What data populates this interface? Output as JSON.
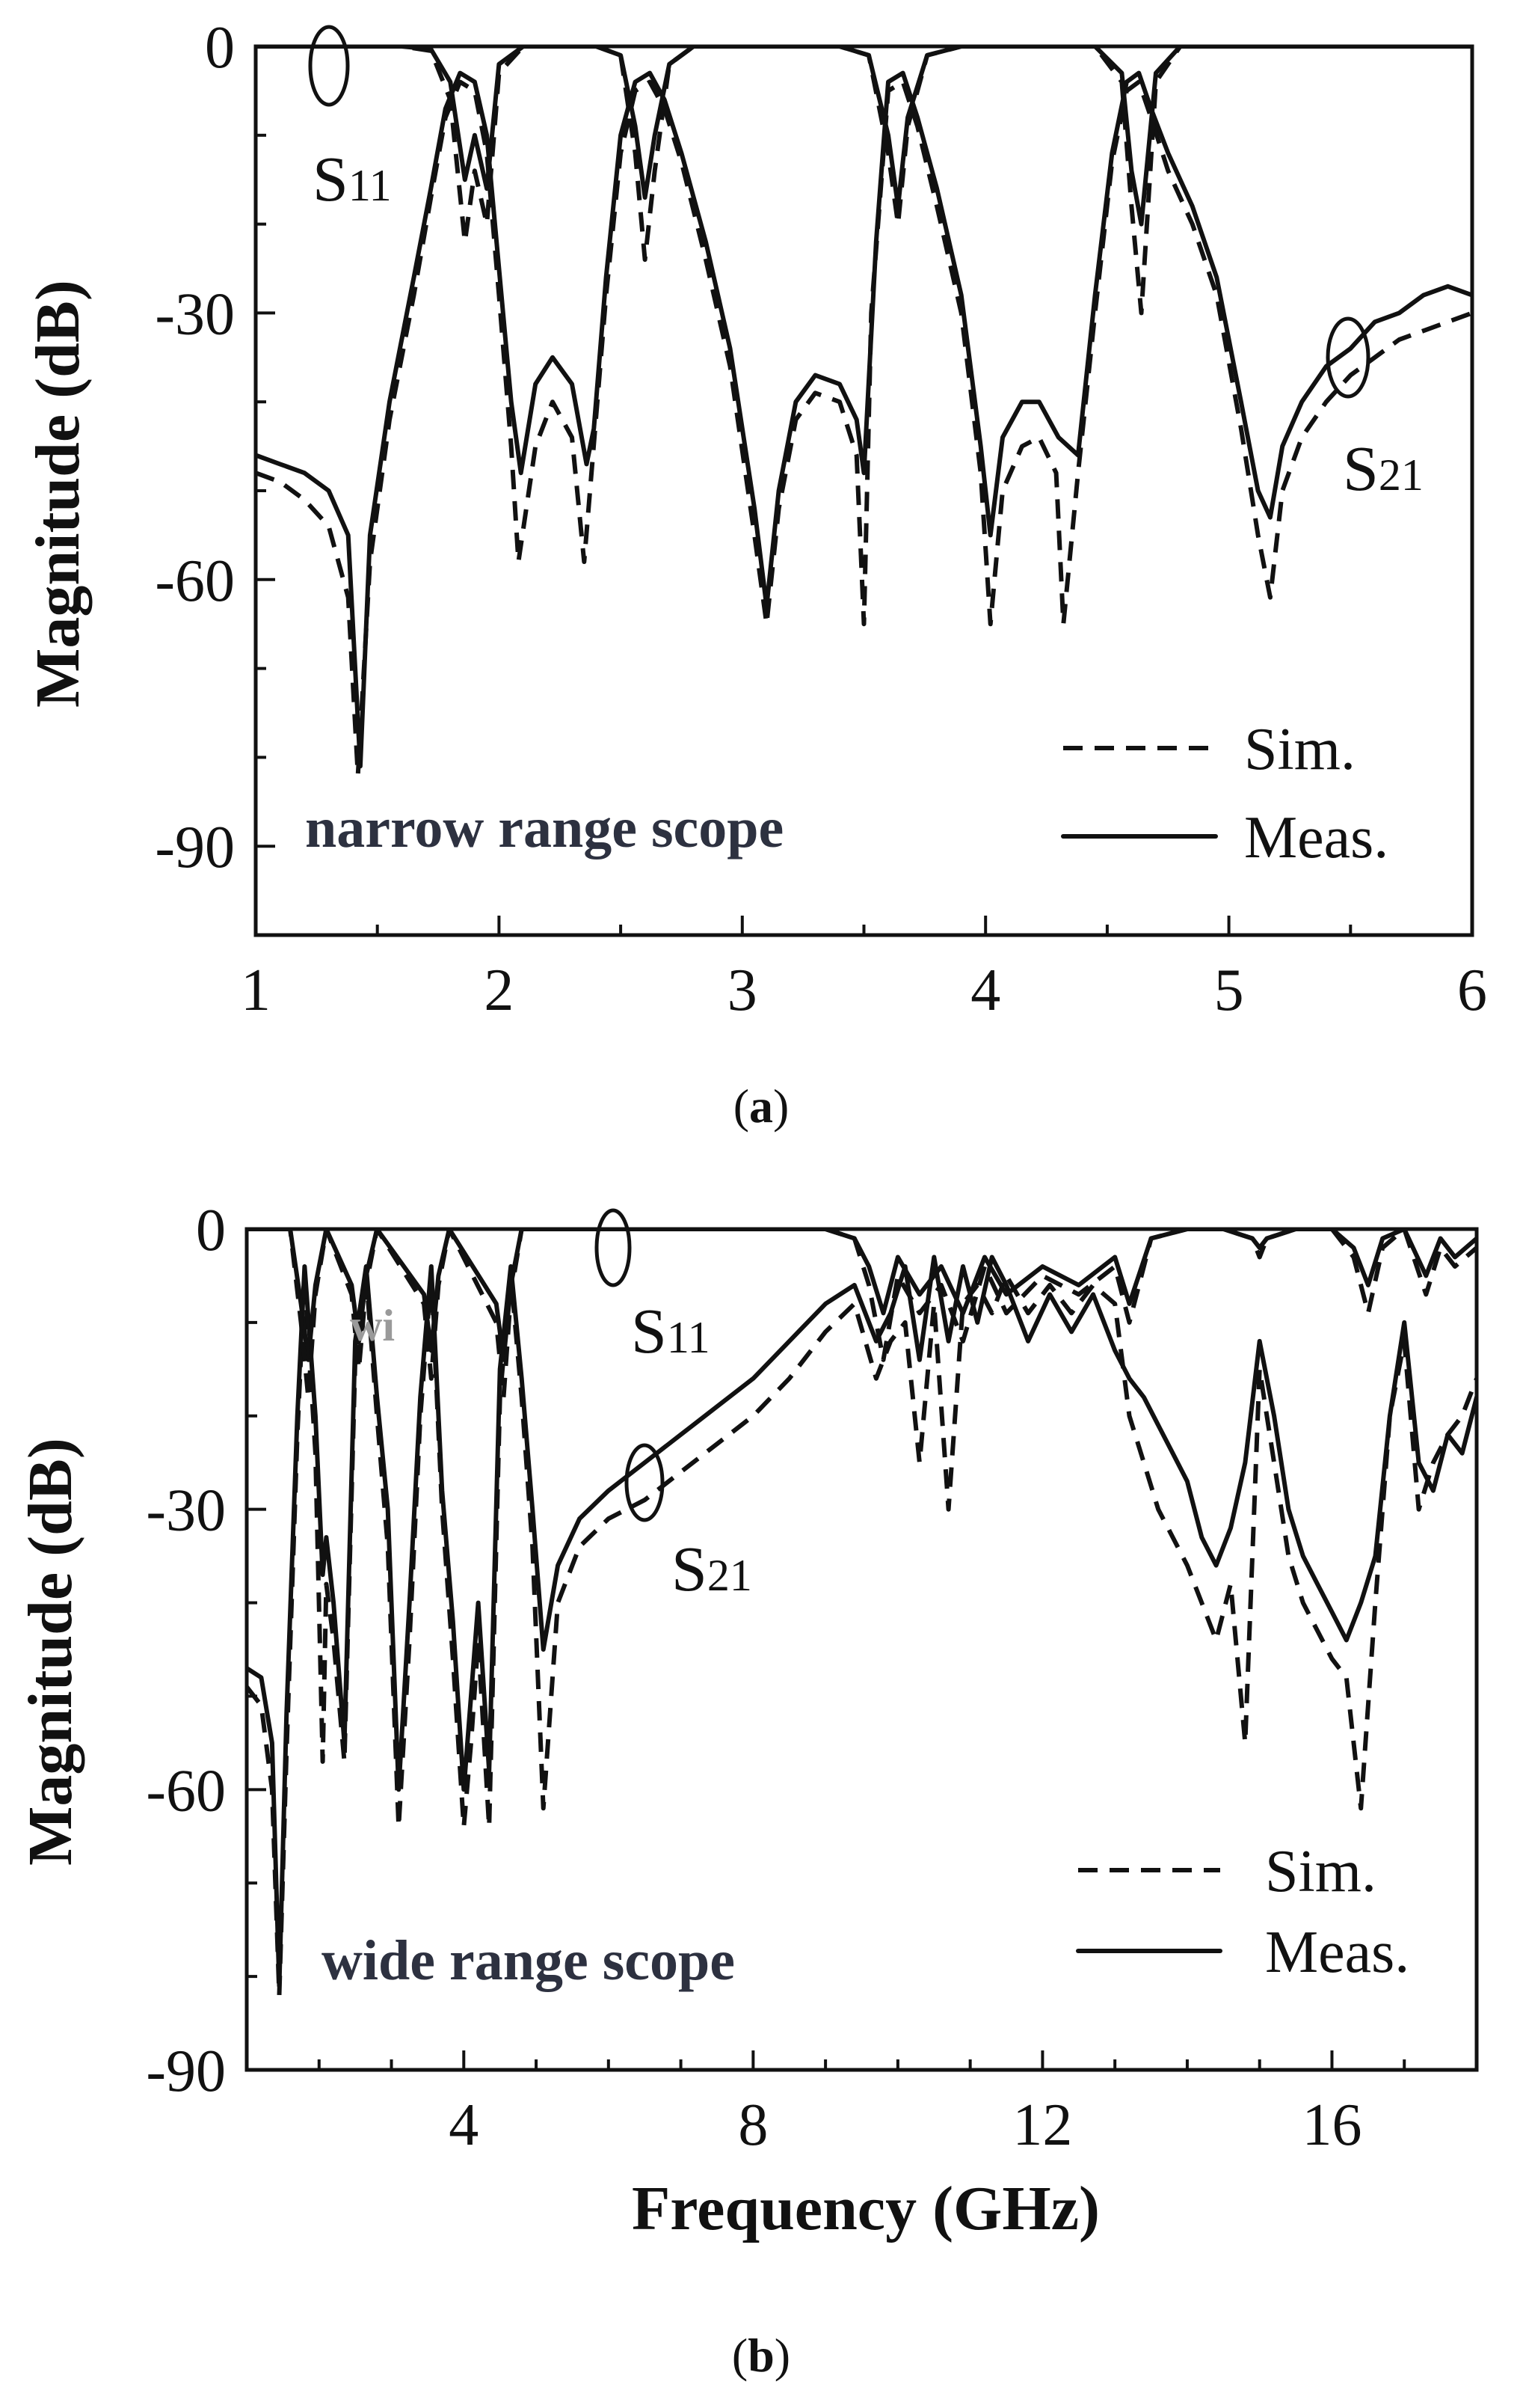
{
  "chart_data": [
    {
      "panel": "a",
      "type": "line",
      "panel_label": "a",
      "ylabel": "Magnitude (dB)",
      "xlabel": "",
      "xlim": [
        1,
        6
      ],
      "ylim": [
        -100,
        0
      ],
      "xticks": [
        "1",
        "2",
        "3",
        "4",
        "5",
        "6"
      ],
      "yticks": [
        "0",
        "-30",
        "-60",
        "-90"
      ],
      "annotation": "narrow range scope",
      "curve_labels": {
        "s11": "S",
        "s11_sub": "11",
        "s21": "S",
        "s21_sub": "21"
      },
      "legend": {
        "sim": "Sim.",
        "meas": "Meas."
      },
      "passbands": [
        [
          1.78,
          1.96
        ],
        [
          2.52,
          2.68
        ],
        [
          3.56,
          3.72
        ],
        [
          4.56,
          4.7
        ]
      ],
      "series": [
        {
          "name": "S21 Meas.",
          "style": "solid",
          "x": [
            1.0,
            1.1,
            1.2,
            1.3,
            1.38,
            1.43,
            1.47,
            1.55,
            1.65,
            1.72,
            1.78,
            1.84,
            1.9,
            1.95,
            2.0,
            2.05,
            2.09,
            2.15,
            2.22,
            2.3,
            2.36,
            2.39,
            2.44,
            2.5,
            2.56,
            2.62,
            2.68,
            2.75,
            2.85,
            2.95,
            3.05,
            3.1,
            3.15,
            3.22,
            3.3,
            3.4,
            3.47,
            3.5,
            3.55,
            3.6,
            3.66,
            3.72,
            3.8,
            3.9,
            3.98,
            4.02,
            4.07,
            4.15,
            4.22,
            4.3,
            4.38,
            4.45,
            4.52,
            4.58,
            4.63,
            4.68,
            4.75,
            4.85,
            4.95,
            5.05,
            5.12,
            5.17,
            5.22,
            5.3,
            5.4,
            5.5,
            5.6,
            5.7,
            5.8,
            5.9,
            6.0
          ],
          "values": [
            -46,
            -47,
            -48,
            -50,
            -55,
            -81,
            -55,
            -40,
            -26,
            -16,
            -7,
            -3,
            -4,
            -10,
            -25,
            -40,
            -48,
            -38,
            -35,
            -38,
            -47,
            -43,
            -26,
            -10,
            -4,
            -3,
            -6,
            -12,
            -22,
            -34,
            -52,
            -63,
            -50,
            -40,
            -37,
            -38,
            -42,
            -48,
            -22,
            -4,
            -3,
            -8,
            -16,
            -28,
            -45,
            -55,
            -44,
            -40,
            -40,
            -44,
            -46,
            -28,
            -12,
            -4,
            -3,
            -7,
            -12,
            -18,
            -26,
            -40,
            -50,
            -53,
            -45,
            -40,
            -36,
            -34,
            -31,
            -30,
            -28,
            -27,
            -28
          ]
        },
        {
          "name": "S21 Sim.",
          "style": "dashed",
          "x": [
            1.0,
            1.1,
            1.2,
            1.3,
            1.38,
            1.42,
            1.47,
            1.55,
            1.65,
            1.72,
            1.78,
            1.84,
            1.9,
            1.95,
            2.0,
            2.05,
            2.08,
            2.15,
            2.22,
            2.3,
            2.35,
            2.38,
            2.44,
            2.5,
            2.56,
            2.62,
            2.68,
            2.75,
            2.85,
            2.95,
            3.05,
            3.1,
            3.15,
            3.22,
            3.3,
            3.4,
            3.47,
            3.5,
            3.53,
            3.6,
            3.66,
            3.72,
            3.8,
            3.9,
            3.98,
            4.02,
            4.07,
            4.15,
            4.22,
            4.29,
            4.32,
            4.38,
            4.45,
            4.52,
            4.58,
            4.63,
            4.68,
            4.75,
            4.85,
            4.95,
            5.05,
            5.12,
            5.17,
            5.22,
            5.3,
            5.4,
            5.5,
            5.6,
            5.7,
            5.8,
            5.9,
            6.0
          ],
          "values": [
            -48,
            -49,
            -51,
            -54,
            -62,
            -82,
            -58,
            -42,
            -28,
            -17,
            -8,
            -4,
            -5,
            -12,
            -28,
            -45,
            -58,
            -45,
            -40,
            -44,
            -58,
            -48,
            -28,
            -12,
            -5,
            -4,
            -7,
            -13,
            -24,
            -36,
            -55,
            -65,
            -52,
            -42,
            -39,
            -40,
            -46,
            -65,
            -30,
            -5,
            -4,
            -9,
            -18,
            -30,
            -48,
            -65,
            -50,
            -45,
            -44,
            -48,
            -65,
            -48,
            -30,
            -13,
            -5,
            -4,
            -8,
            -14,
            -20,
            -28,
            -43,
            -55,
            -62,
            -50,
            -44,
            -40,
            -37,
            -35,
            -33,
            -32,
            -31,
            -30
          ]
        },
        {
          "name": "S11 Meas.",
          "style": "solid",
          "x": [
            1.0,
            1.6,
            1.72,
            1.8,
            1.86,
            1.9,
            1.95,
            2.0,
            2.1,
            2.4,
            2.5,
            2.56,
            2.6,
            2.64,
            2.7,
            2.8,
            3.4,
            3.52,
            3.6,
            3.64,
            3.68,
            3.76,
            3.9,
            4.45,
            4.56,
            4.6,
            4.64,
            4.7,
            4.8,
            5.0,
            6.0
          ],
          "values": [
            0,
            0,
            -0.3,
            -4,
            -15,
            -10,
            -16,
            -2,
            0,
            0,
            -1,
            -9,
            -17,
            -10,
            -2,
            0,
            0,
            -1,
            -10,
            -18,
            -8,
            -1,
            0,
            0,
            -3,
            -14,
            -20,
            -3,
            0,
            0,
            0
          ]
        },
        {
          "name": "S11 Sim.",
          "style": "dashed",
          "x": [
            1.0,
            1.6,
            1.72,
            1.8,
            1.86,
            1.9,
            1.95,
            2.0,
            2.1,
            2.4,
            2.5,
            2.56,
            2.6,
            2.64,
            2.7,
            2.8,
            3.4,
            3.52,
            3.6,
            3.64,
            3.68,
            3.76,
            3.9,
            4.45,
            4.56,
            4.6,
            4.64,
            4.7,
            4.8,
            5.0,
            6.0
          ],
          "values": [
            0,
            0,
            -0.5,
            -6,
            -22,
            -14,
            -20,
            -3,
            0,
            0,
            -1,
            -12,
            -24,
            -14,
            -2,
            0,
            0,
            -1,
            -12,
            -20,
            -9,
            -1,
            0,
            0,
            -4,
            -18,
            -30,
            -4,
            0,
            0,
            0
          ]
        }
      ]
    },
    {
      "panel": "b",
      "type": "line",
      "panel_label": "b",
      "ylabel": "Magnitude (dB)",
      "xlabel": "Frequency (GHz)",
      "xlim": [
        1,
        18
      ],
      "ylim": [
        -90,
        0
      ],
      "xticks": [
        "4",
        "8",
        "12",
        "16"
      ],
      "yticks": [
        "0",
        "-30",
        "-60",
        "-90"
      ],
      "annotation": "wide range scope",
      "faint_text": "wi",
      "curve_labels": {
        "s11": "S",
        "s11_sub": "11",
        "s21": "S",
        "s21_sub": "21"
      },
      "legend": {
        "sim": "Sim.",
        "meas": "Meas."
      },
      "passbands": [
        [
          1.75,
          2.05
        ],
        [
          2.5,
          2.8
        ],
        [
          3.5,
          3.8
        ],
        [
          4.5,
          4.8
        ]
      ],
      "series": [
        {
          "name": "S21 Meas.",
          "style": "solid",
          "x": [
            1.0,
            1.2,
            1.35,
            1.45,
            1.55,
            1.7,
            1.8,
            1.95,
            2.05,
            2.1,
            2.2,
            2.35,
            2.5,
            2.65,
            2.8,
            2.95,
            3.1,
            3.25,
            3.4,
            3.55,
            3.7,
            3.85,
            4.0,
            4.1,
            4.2,
            4.35,
            4.5,
            4.65,
            4.8,
            4.95,
            5.1,
            5.3,
            5.6,
            6.0,
            6.5,
            7.0,
            7.5,
            8.0,
            8.5,
            9.0,
            9.4,
            9.7,
            9.9,
            10.1,
            10.3,
            10.5,
            10.7,
            10.9,
            11.1,
            11.3,
            11.5,
            11.8,
            12.1,
            12.4,
            12.7,
            13.0,
            13.2,
            13.4,
            13.6,
            13.8,
            14.0,
            14.2,
            14.4,
            14.6,
            14.8,
            15.0,
            15.2,
            15.4,
            15.6,
            15.8,
            16.0,
            16.2,
            16.4,
            16.6,
            16.8,
            17.0,
            17.2,
            17.4,
            17.6,
            17.8,
            18.0
          ],
          "values": [
            -47,
            -48,
            -55,
            -81,
            -52,
            -20,
            -4,
            -20,
            -37,
            -33,
            -40,
            -55,
            -12,
            -4,
            -18,
            -30,
            -60,
            -40,
            -18,
            -4,
            -28,
            -42,
            -60,
            -50,
            -40,
            -58,
            -15,
            -4,
            -16,
            -30,
            -45,
            -36,
            -31,
            -28,
            -25,
            -22,
            -19,
            -16,
            -12,
            -8,
            -6,
            -12,
            -9,
            -4,
            -14,
            -3,
            -12,
            -4,
            -10,
            -3,
            -6,
            -12,
            -7,
            -11,
            -7,
            -13,
            -16,
            -18,
            -21,
            -24,
            -27,
            -33,
            -36,
            -32,
            -25,
            -12,
            -20,
            -30,
            -35,
            -38,
            -41,
            -44,
            -40,
            -35,
            -20,
            -10,
            -25,
            -28,
            -22,
            -24,
            -18
          ]
        },
        {
          "name": "S21 Sim.",
          "style": "dashed",
          "x": [
            1.0,
            1.2,
            1.35,
            1.45,
            1.55,
            1.7,
            1.8,
            1.95,
            2.05,
            2.1,
            2.2,
            2.35,
            2.5,
            2.65,
            2.8,
            2.95,
            3.1,
            3.25,
            3.4,
            3.55,
            3.7,
            3.85,
            4.0,
            4.1,
            4.2,
            4.35,
            4.5,
            4.65,
            4.8,
            4.95,
            5.1,
            5.3,
            5.6,
            6.0,
            6.5,
            7.0,
            7.5,
            8.0,
            8.5,
            9.0,
            9.4,
            9.7,
            9.9,
            10.1,
            10.3,
            10.5,
            10.7,
            10.9,
            11.1,
            11.3,
            11.5,
            11.8,
            12.1,
            12.4,
            12.7,
            13.0,
            13.2,
            13.4,
            13.6,
            13.8,
            14.0,
            14.2,
            14.4,
            14.6,
            14.8,
            15.0,
            15.2,
            15.4,
            15.6,
            15.8,
            16.0,
            16.2,
            16.4,
            16.6,
            16.8,
            17.0,
            17.2,
            17.4,
            17.6,
            17.8,
            18.0
          ],
          "values": [
            -49,
            -51,
            -60,
            -82,
            -56,
            -22,
            -5,
            -24,
            -57,
            -38,
            -44,
            -57,
            -14,
            -5,
            -20,
            -34,
            -64,
            -44,
            -20,
            -5,
            -30,
            -46,
            -64,
            -55,
            -44,
            -64,
            -18,
            -5,
            -18,
            -34,
            -62,
            -40,
            -34,
            -31,
            -29,
            -26,
            -23,
            -20,
            -16,
            -11,
            -8,
            -16,
            -12,
            -10,
            -25,
            -8,
            -30,
            -8,
            -6,
            -9,
            -5,
            -9,
            -6,
            -9,
            -6,
            -8,
            -20,
            -25,
            -30,
            -33,
            -36,
            -40,
            -44,
            -38,
            -55,
            -15,
            -25,
            -35,
            -40,
            -43,
            -46,
            -48,
            -62,
            -40,
            -20,
            -12,
            -30,
            -25,
            -22,
            -20,
            -16
          ]
        },
        {
          "name": "S11 Meas.",
          "style": "solid",
          "x": [
            1.0,
            1.6,
            1.75,
            1.85,
            1.95,
            2.1,
            2.45,
            2.55,
            2.65,
            2.8,
            3.45,
            3.55,
            3.65,
            3.8,
            4.45,
            4.55,
            4.65,
            4.8,
            9.0,
            9.4,
            9.6,
            9.8,
            10.0,
            10.3,
            10.6,
            10.9,
            11.2,
            11.5,
            12.0,
            12.5,
            13.0,
            13.2,
            13.5,
            14.0,
            14.5,
            14.9,
            15.0,
            15.1,
            15.5,
            16.0,
            16.3,
            16.5,
            16.7,
            17.0,
            17.3,
            17.5,
            17.7,
            18.0
          ],
          "values": [
            0,
            0,
            -8,
            -14,
            -6,
            0,
            -6,
            -12,
            -5,
            0,
            -7,
            -13,
            -5,
            0,
            -8,
            -14,
            -6,
            0,
            0,
            -1,
            -4,
            -9,
            -3,
            -7,
            -4,
            -9,
            -3,
            -7,
            -4,
            -6,
            -3,
            -8,
            -1,
            0,
            0,
            -1,
            -2,
            -1,
            0,
            0,
            -2,
            -6,
            -1,
            0,
            -5,
            -1,
            -3,
            -1
          ]
        },
        {
          "name": "S11 Sim.",
          "style": "dashed",
          "x": [
            1.0,
            1.6,
            1.75,
            1.85,
            1.95,
            2.1,
            2.45,
            2.55,
            2.65,
            2.8,
            3.45,
            3.55,
            3.65,
            3.8,
            4.45,
            4.55,
            4.65,
            4.8,
            9.0,
            9.4,
            9.6,
            9.8,
            10.0,
            10.3,
            10.6,
            10.9,
            11.2,
            11.5,
            12.0,
            12.5,
            13.0,
            13.2,
            13.5,
            14.0,
            14.5,
            14.9,
            15.0,
            15.1,
            15.5,
            16.0,
            16.3,
            16.5,
            16.7,
            17.0,
            17.3,
            17.5,
            17.7,
            18.0
          ],
          "values": [
            0,
            0,
            -10,
            -18,
            -7,
            0,
            -7,
            -15,
            -6,
            0,
            -8,
            -16,
            -6,
            0,
            -10,
            -18,
            -7,
            0,
            0,
            -1,
            -6,
            -14,
            -5,
            -9,
            -6,
            -12,
            -4,
            -9,
            -5,
            -7,
            -4,
            -10,
            -1,
            0,
            0,
            -1,
            -3,
            -1,
            0,
            0,
            -3,
            -9,
            -2,
            0,
            -7,
            -2,
            -4,
            -2
          ]
        }
      ]
    }
  ]
}
